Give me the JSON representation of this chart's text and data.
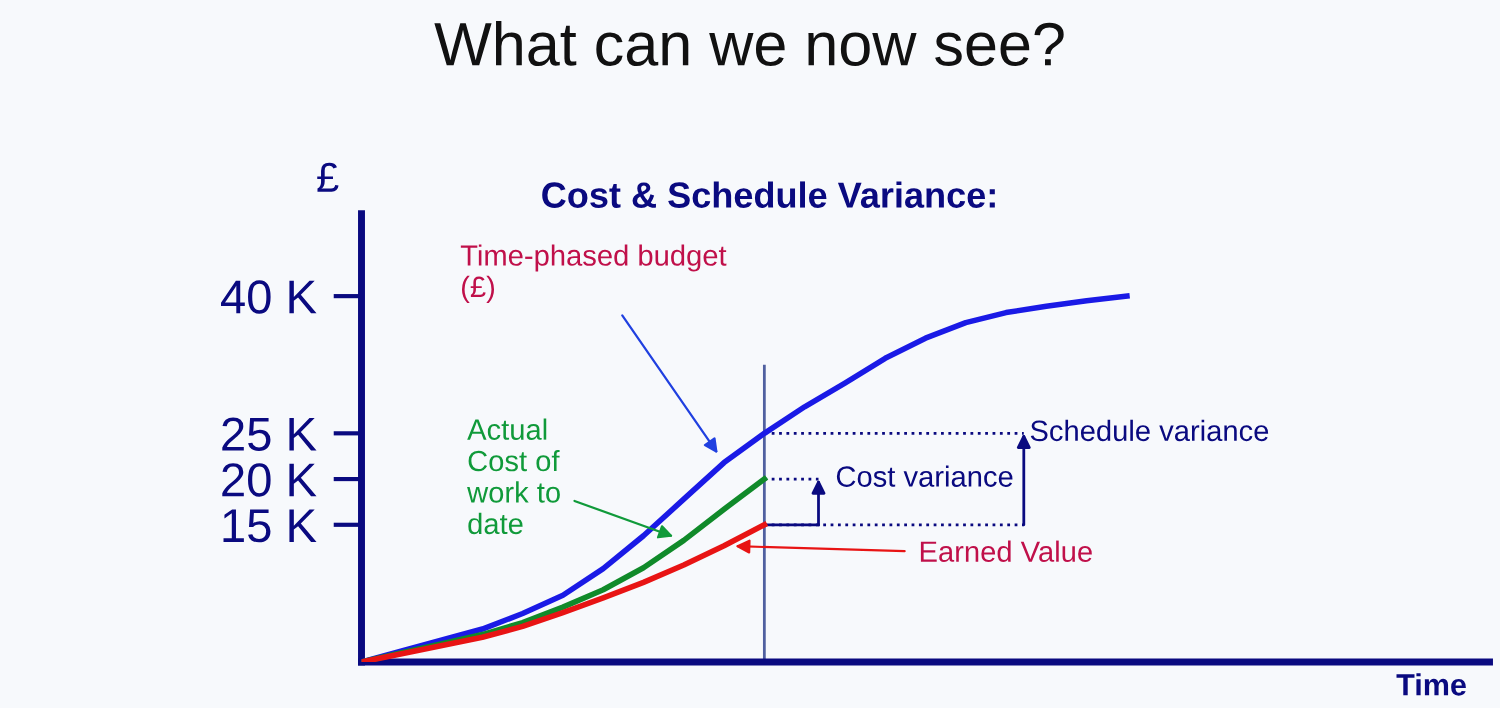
{
  "chart_data": {
    "type": "line",
    "title": "What can we now see?",
    "subtitle": "Cost & Schedule Variance:",
    "ylabel": "£",
    "xlabel": "Time",
    "categories": [
      null,
      null,
      null,
      null,
      null,
      null,
      null,
      null,
      null,
      null,
      null,
      null,
      null,
      null,
      null,
      null,
      null,
      null,
      null,
      null,
      null,
      null,
      null,
      null,
      null,
      null,
      null,
      null,
      null
    ],
    "ylim": [
      0,
      49
    ],
    "yticks": [
      {
        "value": 15,
        "label": "15 K"
      },
      {
        "value": 20,
        "label": "20 K"
      },
      {
        "value": 25,
        "label": "25 K"
      },
      {
        "value": 40,
        "label": "40 K"
      }
    ],
    "tick_labels": "y",
    "grid": false,
    "legend": false,
    "marker": "none",
    "line_style": "solid",
    "series": [
      {
        "color": "#1a1ae6",
        "values": [
          0,
          1.2,
          2.4,
          3.6,
          5.3,
          7.3,
          10.2,
          13.8,
          17.8,
          21.8,
          25,
          27.9,
          30.5,
          33.2,
          35.4,
          37.1,
          38.2,
          38.9,
          39.5,
          40,
          null,
          null,
          null,
          null,
          null,
          null,
          null,
          null,
          null
        ]
      },
      {
        "color": "#108a2a",
        "values": [
          0,
          1.0,
          2.0,
          3.0,
          4.3,
          6.0,
          7.9,
          10.3,
          13.3,
          16.7,
          20,
          null,
          null,
          null,
          null,
          null,
          null,
          null,
          null,
          null,
          null,
          null,
          null,
          null,
          null,
          null,
          null,
          null,
          null
        ]
      },
      {
        "color": "#e81414",
        "values": [
          0,
          0.9,
          1.8,
          2.7,
          3.9,
          5.4,
          7.0,
          8.7,
          10.6,
          12.7,
          15,
          null,
          null,
          null,
          null,
          null,
          null,
          null,
          null,
          null,
          null,
          null,
          null,
          null,
          null,
          null,
          null,
          null,
          null
        ]
      }
    ],
    "annotations": [
      "Time-phased budget\n(£)",
      "Actual\nCost of\nwork to\ndate",
      "Earned Value",
      "Cost variance",
      "Schedule variance"
    ]
  }
}
